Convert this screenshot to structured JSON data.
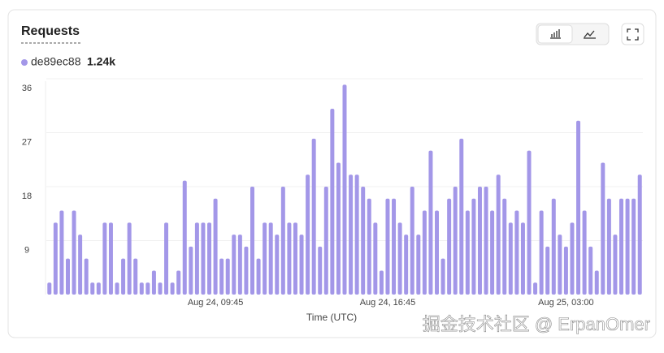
{
  "chart_data": {
    "type": "bar",
    "title": "Requests",
    "legend": {
      "name": "de89ec88",
      "total": "1.24k"
    },
    "xlabel": "Time (UTC)",
    "watermark": "掘金技术社区 @ ErpanOmer",
    "color": "#a397e8",
    "categories": [
      null,
      null,
      null,
      null,
      null,
      null,
      null,
      null,
      null,
      null,
      null,
      null,
      null,
      null,
      null,
      null,
      null,
      null,
      null,
      null,
      null,
      null,
      null,
      null,
      null,
      null,
      null,
      "Aug 24, 09:45",
      null,
      null,
      null,
      null,
      null,
      null,
      null,
      null,
      null,
      null,
      null,
      null,
      null,
      null,
      null,
      null,
      null,
      null,
      null,
      null,
      null,
      null,
      null,
      null,
      null,
      null,
      null,
      "Aug 24, 16:45",
      null,
      null,
      null,
      null,
      null,
      null,
      null,
      null,
      null,
      null,
      null,
      null,
      null,
      null,
      null,
      null,
      null,
      null,
      null,
      null,
      null,
      null,
      null,
      null,
      null,
      null,
      null,
      null,
      "Aug 25, 03:00",
      null,
      null,
      null,
      null,
      null,
      null,
      null,
      null,
      null,
      null,
      null,
      null
    ],
    "values": [
      2,
      12,
      14,
      6,
      14,
      10,
      6,
      2,
      2,
      12,
      12,
      2,
      6,
      12,
      6,
      2,
      2,
      4,
      2,
      12,
      2,
      4,
      19,
      8,
      12,
      12,
      12,
      16,
      6,
      6,
      10,
      10,
      8,
      18,
      6,
      12,
      12,
      10,
      18,
      12,
      12,
      10,
      20,
      26,
      8,
      18,
      31,
      22,
      35,
      20,
      20,
      18,
      16,
      12,
      4,
      16,
      16,
      12,
      10,
      18,
      10,
      14,
      24,
      14,
      6,
      16,
      18,
      26,
      14,
      16,
      18,
      18,
      14,
      20,
      16,
      12,
      14,
      12,
      24,
      2,
      14,
      8,
      16,
      10,
      8,
      12,
      29,
      14,
      8,
      4,
      22,
      16,
      10,
      16,
      16,
      16,
      20
    ],
    "ylim": [
      0,
      36
    ],
    "yticks": [
      9,
      18,
      27,
      36
    ],
    "grid": true
  }
}
